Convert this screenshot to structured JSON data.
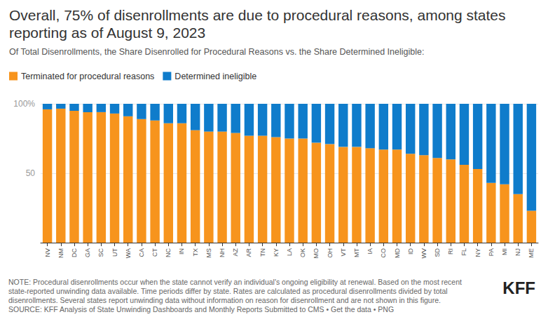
{
  "chart_data": {
    "type": "bar",
    "stacked": true,
    "title": "Overall, 75% of disenrollments are due to procedural reasons, among states reporting as of August 9, 2023",
    "subtitle": "Of Total Disenrollments, the Share Disenrolled for Procedural Reasons vs. the Share Determined Ineligible:",
    "categories": [
      "NV",
      "NM",
      "DC",
      "GA",
      "SC",
      "UT",
      "WA",
      "CA",
      "CT",
      "NC",
      "IN",
      "TX",
      "MS",
      "NH",
      "AZ",
      "AR",
      "TN",
      "KY",
      "LA",
      "OK",
      "MO",
      "OH",
      "VT",
      "MT",
      "IA",
      "CO",
      "MD",
      "ID",
      "WV",
      "SD",
      "RI",
      "FL",
      "NY",
      "PA",
      "MI",
      "NJ",
      "ME"
    ],
    "series": [
      {
        "name": "Terminated for procedural reasons",
        "color": "#f7941d",
        "values": [
          96,
          96.5,
          95,
          94,
          94,
          93,
          91,
          89,
          88,
          86,
          86,
          81,
          80,
          80,
          79,
          77,
          77,
          76,
          75,
          75,
          72,
          71,
          69,
          69,
          68,
          67,
          67,
          64,
          63,
          61,
          60,
          56,
          53,
          43,
          42,
          35,
          23
        ]
      },
      {
        "name": "Determined ineligible",
        "color": "#0f7ccb",
        "values": [
          4,
          3.5,
          5,
          6,
          6,
          7,
          9,
          11,
          12,
          14,
          14,
          19,
          20,
          20,
          21,
          23,
          23,
          24,
          25,
          25,
          28,
          29,
          31,
          31,
          32,
          33,
          33,
          36,
          37,
          39,
          40,
          44,
          47,
          57,
          58,
          65,
          77
        ]
      }
    ],
    "ylim": [
      0,
      100
    ],
    "yticks": [
      50,
      {
        "value": 100,
        "label": "100%"
      }
    ],
    "grid": true,
    "legend": "top-left",
    "note": [
      "NOTE: Procedural disenrollments occur when the state cannot verify an individual's ongoing eligibility at renewal. Based on the most recent",
      "state-reported unwinding data available. Time periods differ by state. Rates are calculated as procedural disenrollments divided by total",
      "disenrollments. Several states report unwinding data without information on reason for disenrollment and are not shown in this figure."
    ],
    "source": "SOURCE: KFF Analysis of State Unwinding Dashboards and Monthly Reports Submitted to CMS • Get the data • PNG",
    "logo": "KFF"
  }
}
